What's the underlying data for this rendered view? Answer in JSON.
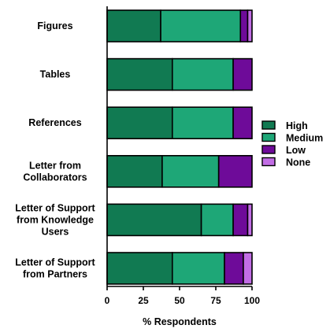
{
  "chart_data": {
    "type": "bar",
    "orientation": "horizontal",
    "stacked": true,
    "categories": [
      "Figures",
      "Tables",
      "References",
      "Letter from\nCollaborators",
      "Letter of Support\nfrom Knowledge\nUsers",
      "Letter of Support\nfrom Partners"
    ],
    "series": [
      {
        "name": "High",
        "color": "#117a52",
        "values": [
          37,
          45,
          45,
          38,
          65,
          45
        ]
      },
      {
        "name": "Medium",
        "color": "#1ea777",
        "values": [
          55,
          42,
          42,
          39,
          22,
          36
        ]
      },
      {
        "name": "Low",
        "color": "#6e0b99",
        "values": [
          5,
          13,
          13,
          23,
          10,
          13
        ]
      },
      {
        "name": "None",
        "color": "#c26de5",
        "values": [
          3,
          0,
          0,
          0,
          3,
          6
        ]
      }
    ],
    "xlabel": "% Respondents",
    "ylabel": "",
    "xlim": [
      0,
      100
    ],
    "xticks": [
      0,
      25,
      50,
      75,
      100
    ],
    "grid": false,
    "legend_position": "right"
  }
}
